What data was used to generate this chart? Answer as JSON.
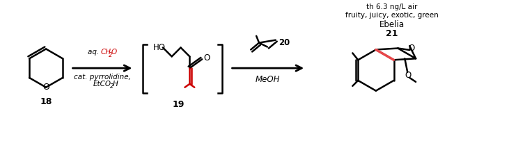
{
  "background_color": "#ffffff",
  "figsize": [
    7.54,
    2.16
  ],
  "dpi": 100,
  "compound18_label": "18",
  "compound19_label": "19",
  "compound20_label": "20",
  "compound21_label": "21",
  "compound21_name": "Ebelia",
  "compound21_desc1": "fruity, juicy, exotic, green",
  "compound21_desc2": "th 6.3 ng/L air",
  "arrow1_reagent1": "aq. CH",
  "arrow1_reagent1b": "2",
  "arrow1_reagent1c": "O",
  "arrow1_reagent2": "cat. pyrrolidine,",
  "arrow1_reagent3": "EtCO",
  "arrow1_reagent3b": "2",
  "arrow1_reagent3c": "H",
  "arrow2_reagent1": "MeOH",
  "red_color": "#cc0000",
  "black_color": "#000000",
  "blue_color": "#1a1aff",
  "dark_red": "#cc0000",
  "pink_red": "#e8474a"
}
